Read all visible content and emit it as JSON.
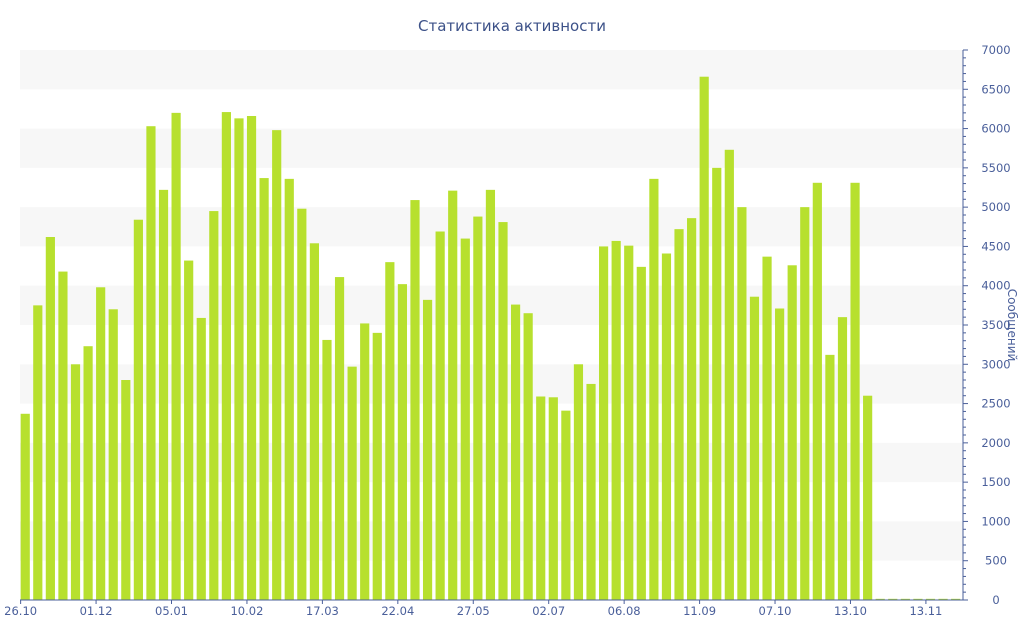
{
  "chart_data": {
    "type": "bar",
    "title": "Статистика активности",
    "xlabel": "",
    "ylabel": "Сообщений",
    "ylim": [
      0,
      7000
    ],
    "y_ticks": [
      0,
      500,
      1000,
      1500,
      2000,
      2500,
      3000,
      3500,
      4000,
      4500,
      5000,
      5500,
      6000,
      6500,
      7000
    ],
    "y_axis_side": "right",
    "grid": "horizontal alternating bands",
    "colors": {
      "bar": "#b7e02e",
      "axis": "#4a5f9a",
      "band": "#f7f7f7",
      "title": "#3c5188"
    },
    "x_tick_labels": [
      {
        "label": "26.10",
        "index": 0
      },
      {
        "label": "01.12",
        "index": 6
      },
      {
        "label": "05.01",
        "index": 12
      },
      {
        "label": "10.02",
        "index": 18
      },
      {
        "label": "17.03",
        "index": 24
      },
      {
        "label": "22.04",
        "index": 30
      },
      {
        "label": "27.05",
        "index": 36
      },
      {
        "label": "02.07",
        "index": 42
      },
      {
        "label": "06.08",
        "index": 48
      },
      {
        "label": "11.09",
        "index": 54
      },
      {
        "label": "07.10",
        "index": 60
      },
      {
        "label": "13.10",
        "index": 66
      },
      {
        "label": "13.11",
        "index": 72
      }
    ],
    "values": [
      2370,
      3750,
      4620,
      4180,
      3000,
      3230,
      3980,
      3700,
      2800,
      4840,
      6030,
      5220,
      6200,
      4320,
      3590,
      4950,
      6210,
      6130,
      6160,
      5370,
      5980,
      5360,
      4980,
      4540,
      3310,
      4110,
      2970,
      3520,
      3400,
      4300,
      4020,
      5090,
      3820,
      4690,
      5210,
      4600,
      4880,
      5220,
      4810,
      3760,
      3650,
      2590,
      2580,
      2410,
      3000,
      2750,
      4500,
      4570,
      4510,
      4240,
      5360,
      4410,
      4720,
      4860,
      6660,
      5500,
      5730,
      5000,
      3860,
      4370,
      3710,
      4260,
      5000,
      5310,
      3120,
      3600,
      5310,
      2600,
      15,
      15,
      15,
      15,
      15,
      15,
      15
    ]
  }
}
